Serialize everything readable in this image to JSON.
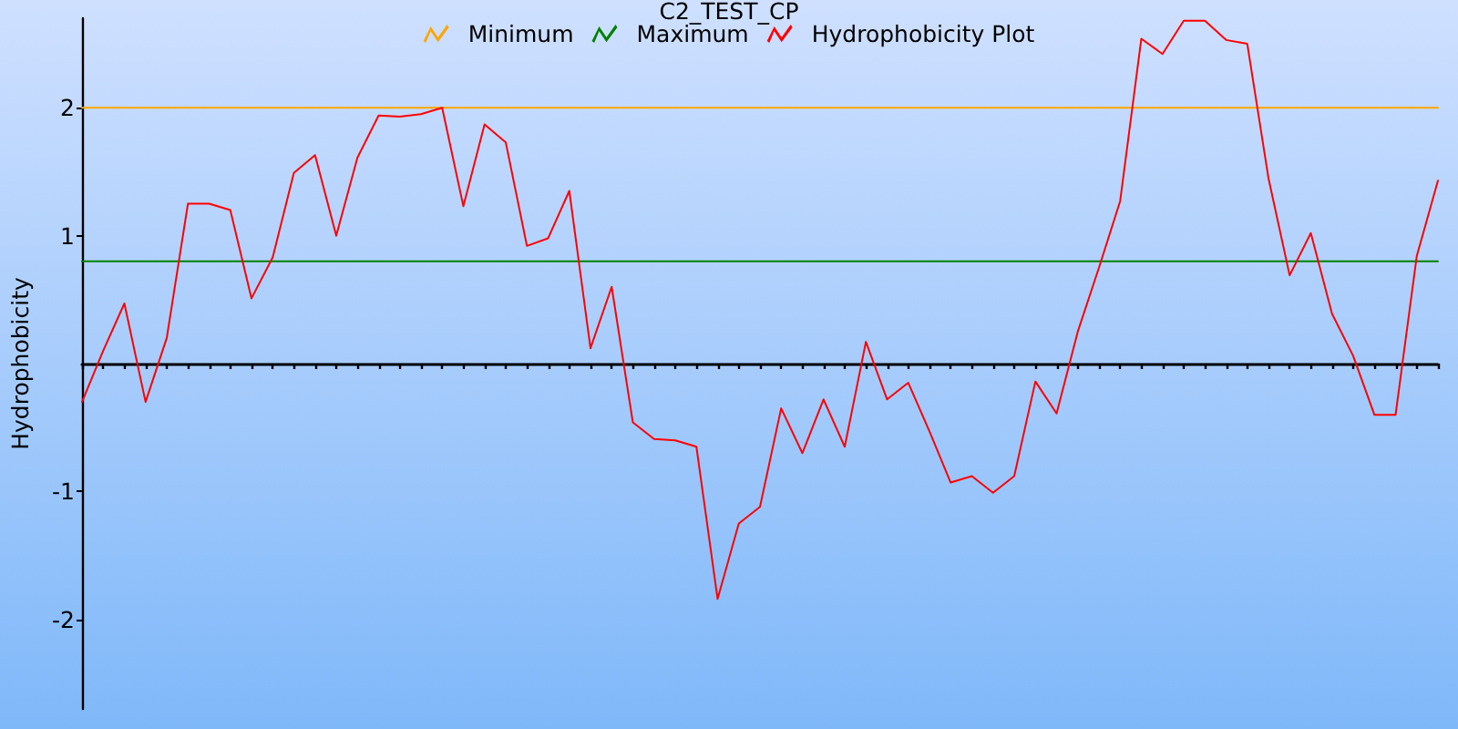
{
  "chart_data": {
    "type": "line",
    "title": "C2_TEST_CP",
    "ylabel": "Hydrophobicity",
    "categories": [
      null,
      null,
      null,
      null,
      null,
      null,
      null,
      null,
      null,
      null,
      null,
      null,
      null,
      null,
      null,
      null,
      null,
      null,
      null,
      null,
      null,
      null,
      null,
      null,
      null,
      null,
      null,
      null,
      null,
      null,
      null,
      null,
      null,
      null,
      null,
      null,
      null,
      null,
      null,
      null,
      null,
      null,
      null,
      null,
      null,
      null,
      null,
      null,
      null,
      null,
      null,
      null,
      null,
      null,
      null,
      null,
      null,
      null,
      null,
      null,
      null,
      null,
      null,
      null,
      null
    ],
    "series": [
      {
        "name": "Minimum",
        "color": "#ffa500",
        "values": [
          2,
          2,
          2,
          2,
          2,
          2,
          2,
          2,
          2,
          2,
          2,
          2,
          2,
          2,
          2,
          2,
          2,
          2,
          2,
          2,
          2,
          2,
          2,
          2,
          2,
          2,
          2,
          2,
          2,
          2,
          2,
          2,
          2,
          2,
          2,
          2,
          2,
          2,
          2,
          2,
          2,
          2,
          2,
          2,
          2,
          2,
          2,
          2,
          2,
          2,
          2,
          2,
          2,
          2,
          2,
          2,
          2,
          2,
          2,
          2,
          2,
          2,
          2,
          2,
          2
        ]
      },
      {
        "name": "Maximum",
        "color": "#008000",
        "values": [
          0.8,
          0.8,
          0.8,
          0.8,
          0.8,
          0.8,
          0.8,
          0.8,
          0.8,
          0.8,
          0.8,
          0.8,
          0.8,
          0.8,
          0.8,
          0.8,
          0.8,
          0.8,
          0.8,
          0.8,
          0.8,
          0.8,
          0.8,
          0.8,
          0.8,
          0.8,
          0.8,
          0.8,
          0.8,
          0.8,
          0.8,
          0.8,
          0.8,
          0.8,
          0.8,
          0.8,
          0.8,
          0.8,
          0.8,
          0.8,
          0.8,
          0.8,
          0.8,
          0.8,
          0.8,
          0.8,
          0.8,
          0.8,
          0.8,
          0.8,
          0.8,
          0.8,
          0.8,
          0.8,
          0.8,
          0.8,
          0.8,
          0.8,
          0.8,
          0.8,
          0.8,
          0.8,
          0.8,
          0.8,
          0.8
        ]
      },
      {
        "name": "Hydrophobicity Plot",
        "color": "#ff0000",
        "values": [
          -0.3,
          0.1,
          0.47,
          -0.3,
          0.2,
          1.25,
          1.25,
          1.2,
          0.51,
          0.83,
          1.49,
          1.63,
          1.0,
          1.61,
          1.94,
          1.93,
          1.95,
          2.0,
          1.23,
          1.87,
          1.73,
          0.92,
          0.98,
          1.35,
          0.12,
          0.6,
          -0.46,
          -0.59,
          -0.6,
          -0.65,
          -1.84,
          -1.25,
          -1.12,
          -0.35,
          -0.7,
          -0.28,
          -0.65,
          0.17,
          -0.28,
          -0.15,
          -0.53,
          -0.93,
          -0.88,
          -1.01,
          -0.88,
          -0.14,
          -0.39,
          0.25,
          0.75,
          1.27,
          2.54,
          2.42,
          2.68,
          2.68,
          2.53,
          2.5,
          1.45,
          0.69,
          1.02,
          0.39,
          0.06,
          -0.4,
          -0.4,
          0.84,
          1.43
        ]
      }
    ],
    "ylim": [
      -2.7,
      2.7
    ],
    "yticks": [
      -2,
      -1,
      1,
      2
    ],
    "grid": false,
    "legend": "top",
    "tick_labels": "y",
    "marker": "none",
    "line_style": "solid"
  }
}
